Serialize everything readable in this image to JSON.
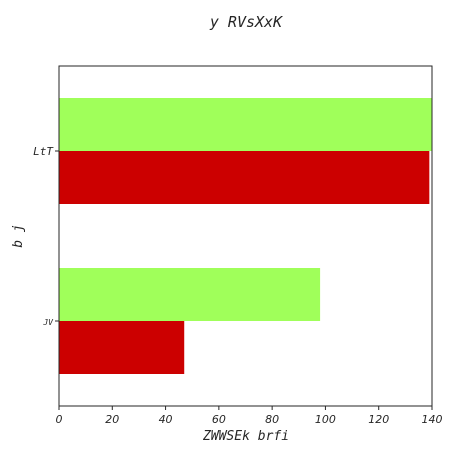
{
  "chart_data": {
    "type": "bar",
    "orientation": "horizontal",
    "title": "y RVsXxK",
    "xlabel": "ZWWSEk brfi",
    "ylabel": "b   j",
    "xlim": [
      0,
      140
    ],
    "xticks": [
      0,
      20,
      40,
      60,
      80,
      100,
      120,
      140
    ],
    "categories": [
      "LtT",
      "JV"
    ],
    "series": [
      {
        "color": "#a0ff5a",
        "values": [
          140,
          98
        ]
      },
      {
        "color": "#cc0000",
        "values": [
          139,
          47
        ]
      }
    ],
    "grid": false,
    "legend": "none"
  }
}
